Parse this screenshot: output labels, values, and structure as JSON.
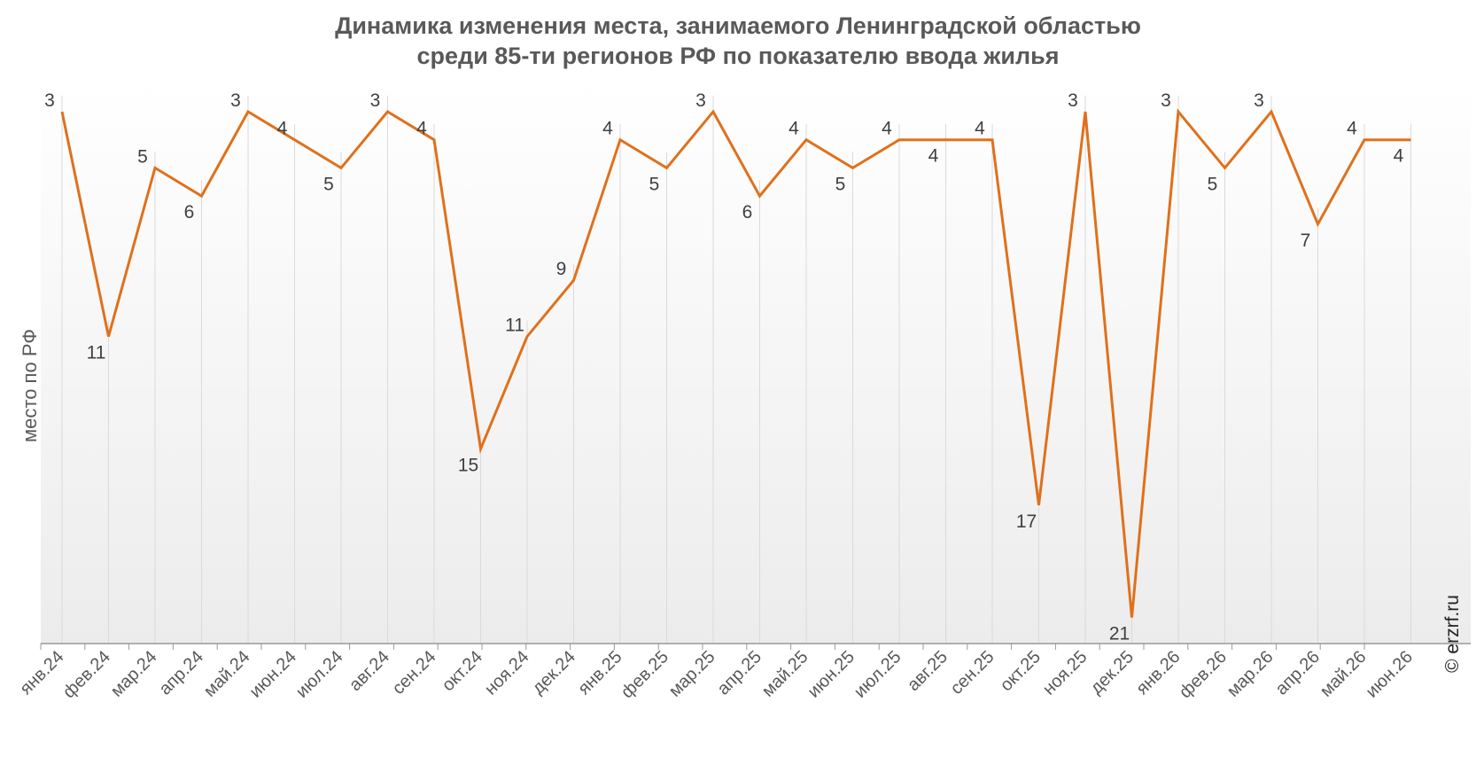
{
  "chart_data": {
    "type": "line",
    "title_lines": [
      "Динамика изменения места, занимаемого Ленинградской областью",
      "среди 85-ти регионов РФ по показателю ввода жилья"
    ],
    "ylabel": "место по РФ",
    "xlabel": "",
    "watermark": "© erzrf.ru",
    "y_axis_reversed": true,
    "y_axis_tick_labels_shown": false,
    "grid": "vertical",
    "legend": "none",
    "line_color": "#E0701B",
    "categories": [
      "янв.24",
      "фев.24",
      "мар.24",
      "апр.24",
      "май.24",
      "июн.24",
      "июл.24",
      "авг.24",
      "сен.24",
      "окт.24",
      "ноя.24",
      "дек.24",
      "янв.25",
      "фев.25",
      "мар.25",
      "апр.25",
      "май.25",
      "июн.25",
      "июл.25",
      "авг.25",
      "сен.25",
      "окт.25",
      "ноя.25",
      "дек.25",
      "янв.26",
      "фев.26",
      "мар.26",
      "апр.26",
      "май.26",
      "июн.26"
    ],
    "series": [
      {
        "values": [
          3,
          11,
          5,
          6,
          3,
          4,
          5,
          3,
          4,
          15,
          11,
          9,
          4,
          5,
          3,
          6,
          4,
          5,
          4,
          4,
          4,
          17,
          3,
          21,
          3,
          5,
          3,
          7,
          4,
          4
        ]
      }
    ]
  }
}
